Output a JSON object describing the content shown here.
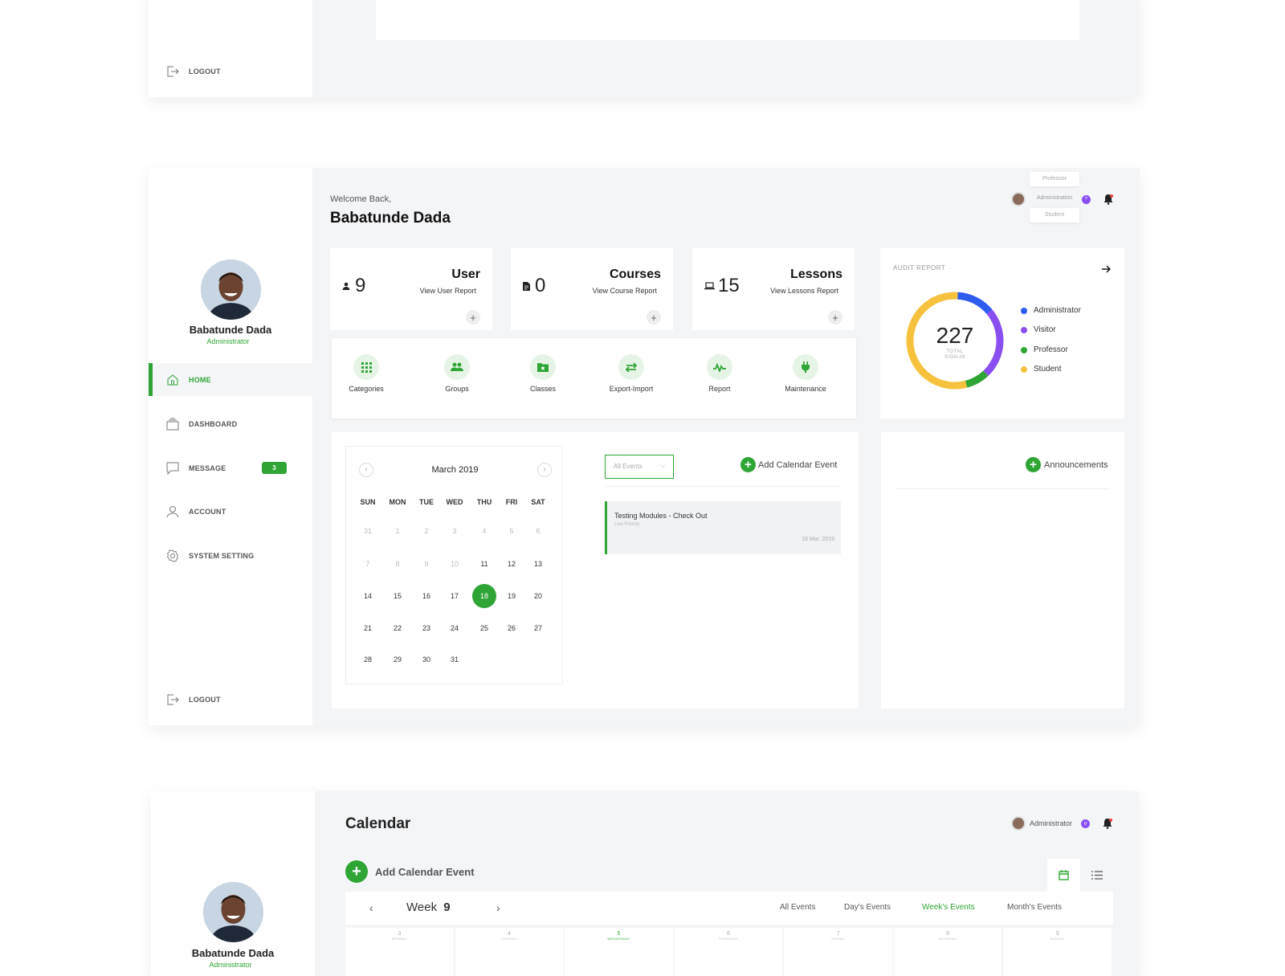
{
  "top_panel": {
    "logout_label": "LOGOUT"
  },
  "main_panel": {
    "sidebar": {
      "user_name": "Babatunde Dada",
      "user_role": "Administrator",
      "nav": [
        {
          "label": "HOME",
          "icon": "home-icon",
          "active": true
        },
        {
          "label": "DASHBOARD",
          "icon": "dashboard-icon",
          "active": false
        },
        {
          "label": "MESSAGE",
          "icon": "message-icon",
          "active": false,
          "badge": "3"
        },
        {
          "label": "ACCOUNT",
          "icon": "account-icon",
          "active": false
        },
        {
          "label": "SYSTEM SETTING",
          "icon": "settings-icon",
          "active": false
        }
      ],
      "logout_label": "LOGOUT"
    },
    "header": {
      "welcome": "Welcome Back,",
      "name": "Babatunde Dada",
      "role_options": [
        "Professor",
        "Administration",
        "Student"
      ]
    },
    "stats": [
      {
        "value": "9",
        "title": "User",
        "link": "View User Report",
        "icon": "user-icon"
      },
      {
        "value": "0",
        "title": "Courses",
        "link": "View Course Report",
        "icon": "document-icon"
      },
      {
        "value": "15",
        "title": "Lessons",
        "link": "View Lessons Report",
        "icon": "laptop-icon"
      }
    ],
    "quick_actions": [
      {
        "label": "Categories",
        "icon": "grid-icon"
      },
      {
        "label": "Groups",
        "icon": "groups-icon"
      },
      {
        "label": "Classes",
        "icon": "folder-star-icon"
      },
      {
        "label": "Export-Import",
        "icon": "swap-icon"
      },
      {
        "label": "Report",
        "icon": "activity-icon"
      },
      {
        "label": "Maintenance",
        "icon": "plug-icon"
      }
    ],
    "audit": {
      "title": "AUDIT REPORT",
      "total": "227",
      "total_label_1": "TOTAL",
      "total_label_2": "SIGN-IN",
      "legend": [
        {
          "name": "Administrator",
          "color": "#2f5cf0"
        },
        {
          "name": "Visitor",
          "color": "#8a4ff0"
        },
        {
          "name": "Professor",
          "color": "#2fa535"
        },
        {
          "name": "Student",
          "color": "#f6c23e"
        }
      ]
    },
    "chart_data": {
      "type": "pie",
      "categories": [
        "Administrator",
        "Visitor",
        "Professor",
        "Student"
      ],
      "values": [
        13,
        24,
        8,
        55
      ],
      "colors": [
        "#2f5cf0",
        "#8a4ff0",
        "#2fa535",
        "#f6c23e"
      ]
    },
    "calendar": {
      "month": "March 2019",
      "weekdays": [
        "SUN",
        "MON",
        "TUE",
        "WED",
        "THU",
        "FRI",
        "SAT"
      ],
      "weeks": [
        [
          {
            "d": "31",
            "m": true
          },
          {
            "d": "1",
            "m": true
          },
          {
            "d": "2",
            "m": true
          },
          {
            "d": "3",
            "m": true
          },
          {
            "d": "4",
            "m": true
          },
          {
            "d": "5",
            "m": true
          },
          {
            "d": "6",
            "m": true
          }
        ],
        [
          {
            "d": "7",
            "m": true
          },
          {
            "d": "8",
            "m": true
          },
          {
            "d": "9",
            "m": true
          },
          {
            "d": "10",
            "m": true
          },
          {
            "d": "11"
          },
          {
            "d": "12"
          },
          {
            "d": "13"
          }
        ],
        [
          {
            "d": "14"
          },
          {
            "d": "15"
          },
          {
            "d": "16"
          },
          {
            "d": "17"
          },
          {
            "d": "18",
            "t": true
          },
          {
            "d": "19"
          },
          {
            "d": "20"
          }
        ],
        [
          {
            "d": "21"
          },
          {
            "d": "22"
          },
          {
            "d": "23"
          },
          {
            "d": "24"
          },
          {
            "d": "25"
          },
          {
            "d": "26"
          },
          {
            "d": "27"
          }
        ],
        [
          {
            "d": "28"
          },
          {
            "d": "29"
          },
          {
            "d": "30"
          },
          {
            "d": "31"
          }
        ]
      ]
    },
    "events": {
      "filter": "All Events",
      "add_label": "Add Calendar Event",
      "item_title": "Testing Modules - Check Out",
      "item_priority": "Low Priority",
      "item_date": "18 Mar. 2019"
    },
    "announcements": {
      "label": "Announcements"
    }
  },
  "bottom_panel": {
    "title": "Calendar",
    "user_role": "Administrator",
    "add_label": "Add Calendar Event",
    "week_label": "Week",
    "week_number": "9",
    "tabs": [
      "All Events",
      "Day's Events",
      "Week's Events",
      "Month's Events"
    ],
    "active_tab": "Week's Events",
    "days": [
      {
        "num": "3",
        "name": "MONDAY"
      },
      {
        "num": "4",
        "name": "TUESDAY"
      },
      {
        "num": "5",
        "name": "WEDNESDAY"
      },
      {
        "num": "6",
        "name": "THURSDAY"
      },
      {
        "num": "7",
        "name": "FRIDAY"
      },
      {
        "num": "8",
        "name": "SATURDAY"
      },
      {
        "num": "9",
        "name": "SUNDAY"
      }
    ],
    "sidebar_name": "Babatunde Dada",
    "sidebar_role": "Administrator"
  }
}
